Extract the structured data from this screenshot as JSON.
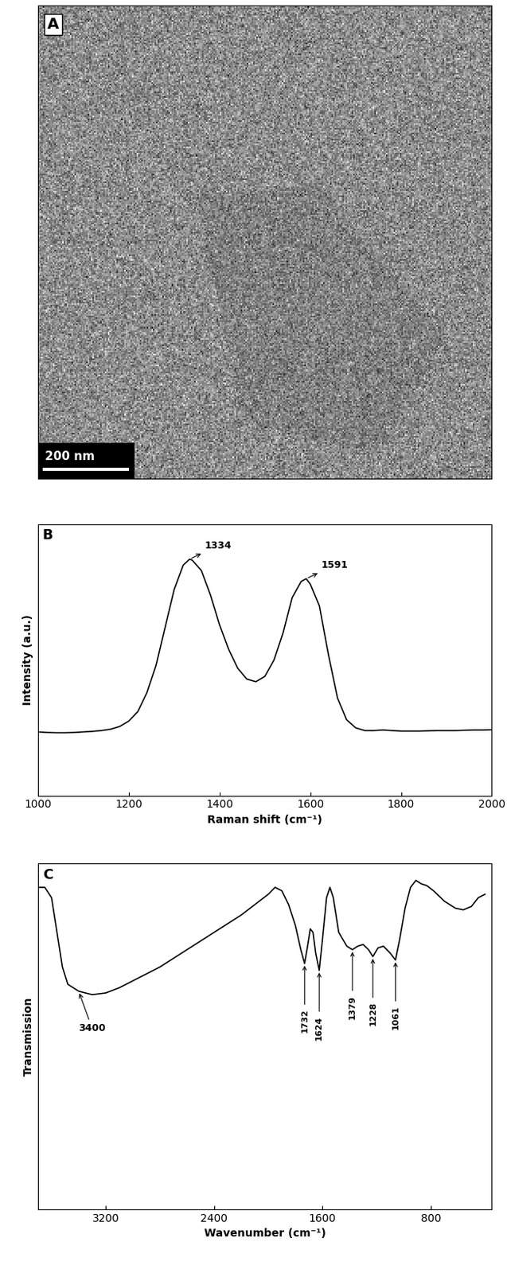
{
  "panel_a": {
    "type": "image",
    "label": "A",
    "scale_bar": "200 nm"
  },
  "chart_data": [
    {
      "type": "line",
      "label": "B",
      "x_label": "Raman shift (cm⁻¹)",
      "y_label": "Intensity (a.u.)",
      "xlim": [
        1000,
        2000
      ],
      "xticks": [
        1000,
        1200,
        1400,
        1600,
        1800,
        2000
      ],
      "ylim": [
        0,
        1
      ],
      "yticks": [],
      "tick_labels": "x",
      "grid": false,
      "color": "#000000",
      "x": [
        1000,
        1020,
        1040,
        1060,
        1080,
        1100,
        1120,
        1140,
        1160,
        1180,
        1200,
        1220,
        1240,
        1260,
        1280,
        1300,
        1320,
        1334,
        1340,
        1360,
        1380,
        1400,
        1420,
        1440,
        1460,
        1480,
        1500,
        1520,
        1540,
        1560,
        1580,
        1591,
        1600,
        1620,
        1640,
        1660,
        1680,
        1700,
        1720,
        1740,
        1760,
        1780,
        1800,
        1820,
        1840,
        1860,
        1880,
        1900,
        1920,
        1940,
        1960,
        1980,
        2000
      ],
      "values": [
        0.235,
        0.233,
        0.232,
        0.232,
        0.233,
        0.235,
        0.237,
        0.24,
        0.245,
        0.255,
        0.275,
        0.31,
        0.38,
        0.48,
        0.62,
        0.76,
        0.85,
        0.872,
        0.868,
        0.83,
        0.74,
        0.63,
        0.54,
        0.47,
        0.43,
        0.42,
        0.44,
        0.5,
        0.6,
        0.73,
        0.79,
        0.8,
        0.78,
        0.7,
        0.52,
        0.36,
        0.28,
        0.25,
        0.24,
        0.24,
        0.242,
        0.24,
        0.238,
        0.238,
        0.238,
        0.239,
        0.24,
        0.24,
        0.24,
        0.241,
        0.242,
        0.242,
        0.243
      ],
      "annotations": [
        {
          "text": "1334",
          "x": 1334,
          "y": 0.872
        },
        {
          "text": "1591",
          "x": 1591,
          "y": 0.8
        }
      ]
    },
    {
      "type": "line",
      "label": "C",
      "x_label": "Wavenumber (cm⁻¹)",
      "y_label": "Transmission",
      "xlim": [
        3700,
        350
      ],
      "xticks": [
        3200,
        2400,
        1600,
        800
      ],
      "ylim": [
        0,
        1
      ],
      "yticks": [],
      "tick_labels": "x",
      "grid": false,
      "color": "#000000",
      "x": [
        3700,
        3650,
        3600,
        3560,
        3520,
        3480,
        3400,
        3300,
        3200,
        3100,
        3000,
        2800,
        2600,
        2400,
        2200,
        2100,
        2000,
        1950,
        1900,
        1850,
        1800,
        1760,
        1732,
        1710,
        1690,
        1670,
        1650,
        1624,
        1600,
        1570,
        1545,
        1520,
        1480,
        1420,
        1379,
        1340,
        1300,
        1260,
        1228,
        1190,
        1150,
        1100,
        1061,
        1030,
        990,
        950,
        910,
        870,
        830,
        780,
        700,
        620,
        560,
        500,
        450,
        400
      ],
      "values": [
        0.93,
        0.93,
        0.9,
        0.8,
        0.7,
        0.65,
        0.63,
        0.62,
        0.625,
        0.64,
        0.66,
        0.7,
        0.75,
        0.8,
        0.85,
        0.88,
        0.91,
        0.93,
        0.92,
        0.88,
        0.82,
        0.75,
        0.71,
        0.76,
        0.81,
        0.8,
        0.74,
        0.69,
        0.78,
        0.9,
        0.93,
        0.9,
        0.8,
        0.76,
        0.75,
        0.76,
        0.765,
        0.75,
        0.73,
        0.755,
        0.76,
        0.74,
        0.72,
        0.78,
        0.87,
        0.93,
        0.95,
        0.94,
        0.935,
        0.92,
        0.89,
        0.87,
        0.865,
        0.875,
        0.9,
        0.91
      ],
      "annotations": [
        {
          "text": "3400",
          "x": 3400,
          "y": 0.63
        },
        {
          "text": "1732",
          "x": 1732,
          "y": 0.71
        },
        {
          "text": "1624",
          "x": 1624,
          "y": 0.69
        },
        {
          "text": "1379",
          "x": 1379,
          "y": 0.75
        },
        {
          "text": "1228",
          "x": 1228,
          "y": 0.73
        },
        {
          "text": "1061",
          "x": 1061,
          "y": 0.72
        }
      ]
    }
  ]
}
